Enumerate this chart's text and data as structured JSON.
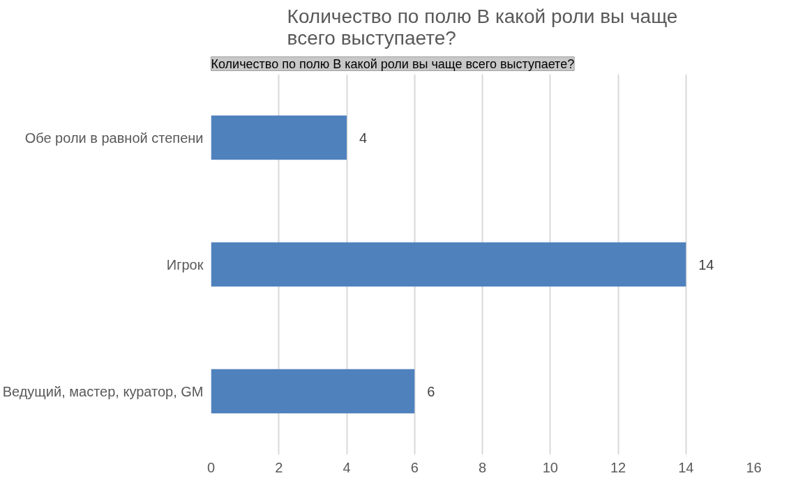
{
  "chart_data": {
    "type": "bar",
    "orientation": "horizontal",
    "title": "Количество по полю В какой роли вы чаще всего выступаете?",
    "annotations": [
      "Количество по полю В какой роли вы чаще всего выступаете?"
    ],
    "categories": [
      "Обе роли в равной степени",
      "Игрок",
      "Ведущий, мастер, куратор, GM"
    ],
    "values": [
      4,
      14,
      6
    ],
    "color": "#4f81bd",
    "xlim": [
      0,
      16
    ],
    "xticks": [
      0,
      2,
      4,
      6,
      8,
      10,
      12,
      14,
      16
    ],
    "grid": "x",
    "data_labels": true
  }
}
